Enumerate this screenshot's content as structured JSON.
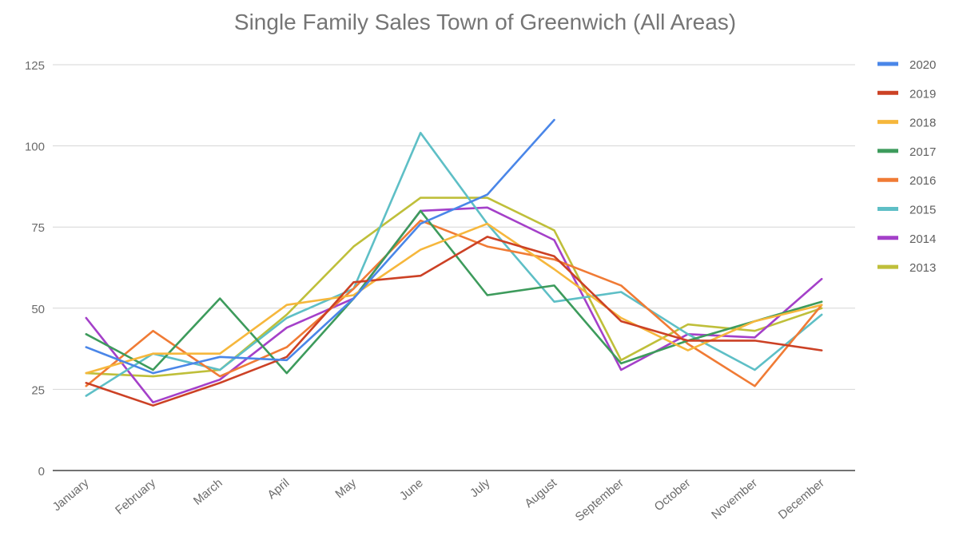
{
  "chart_data": {
    "type": "line",
    "title": "Single Family Sales Town of Greenwich (All Areas)",
    "xlabel": "",
    "ylabel": "",
    "ylim": [
      0,
      125
    ],
    "yticks": [
      0,
      25,
      50,
      75,
      100,
      125
    ],
    "grid": true,
    "legend_position": "right",
    "categories": [
      "January",
      "February",
      "March",
      "April",
      "May",
      "June",
      "July",
      "August",
      "September",
      "October",
      "November",
      "December"
    ],
    "series": [
      {
        "name": "2020",
        "color": "#4a86e8",
        "values": [
          38,
          30,
          35,
          34,
          53,
          76,
          85,
          108,
          null,
          null,
          null,
          null
        ]
      },
      {
        "name": "2019",
        "color": "#cc4125",
        "values": [
          27,
          20,
          27,
          35,
          58,
          60,
          72,
          66,
          46,
          40,
          40,
          37
        ]
      },
      {
        "name": "2018",
        "color": "#f6b73c",
        "values": [
          30,
          36,
          36,
          51,
          54,
          68,
          76,
          62,
          47,
          37,
          46,
          51
        ]
      },
      {
        "name": "2017",
        "color": "#3d9b5c",
        "values": [
          42,
          31,
          53,
          30,
          53,
          80,
          54,
          57,
          33,
          40,
          46,
          52
        ]
      },
      {
        "name": "2016",
        "color": "#f07b35",
        "values": [
          26,
          43,
          29,
          38,
          56,
          77,
          69,
          65,
          57,
          39,
          26,
          51
        ]
      },
      {
        "name": "2015",
        "color": "#5ebfc6",
        "values": [
          23,
          36,
          31,
          47,
          56,
          104,
          76,
          52,
          55,
          42,
          31,
          48
        ]
      },
      {
        "name": "2014",
        "color": "#a440c9",
        "values": [
          47,
          21,
          28,
          44,
          53,
          80,
          81,
          71,
          31,
          42,
          41,
          59
        ]
      },
      {
        "name": "2013",
        "color": "#bfbf3a",
        "values": [
          30,
          29,
          31,
          48,
          69,
          84,
          84,
          74,
          34,
          45,
          43,
          50
        ]
      }
    ]
  }
}
